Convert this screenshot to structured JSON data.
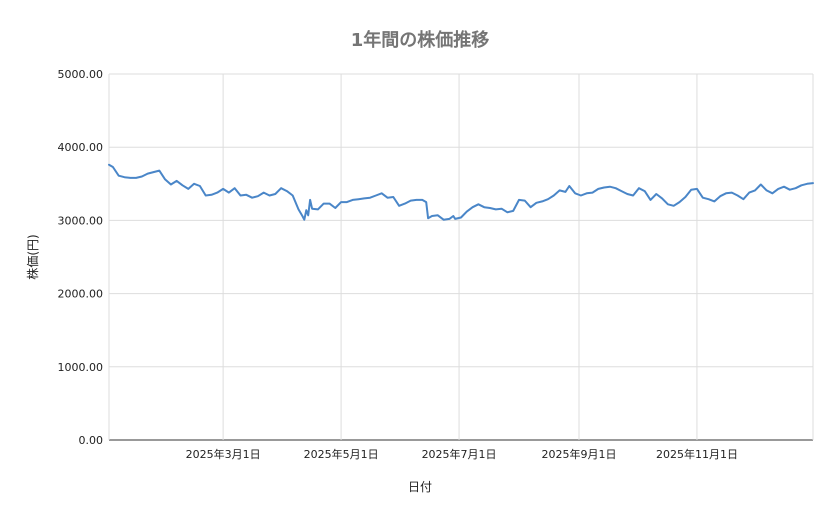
{
  "chart_data": {
    "type": "line",
    "title": "1年間の株価推移",
    "xlabel": "日付",
    "ylabel": "株価(円)",
    "ylim": [
      0,
      5000
    ],
    "y_ticks": [
      "0.00",
      "1000.00",
      "2000.00",
      "3000.00",
      "4000.00",
      "5000.00"
    ],
    "x_range": [
      "2025-01-01",
      "2025-12-31"
    ],
    "x_ticks": [
      {
        "date": "2025-03-01",
        "label": "2025年3月1日"
      },
      {
        "date": "2025-05-01",
        "label": "2025年5月1日"
      },
      {
        "date": "2025-07-01",
        "label": "2025年7月1日"
      },
      {
        "date": "2025-09-01",
        "label": "2025年9月1日"
      },
      {
        "date": "2025-11-01",
        "label": "2025年11月1日"
      }
    ],
    "grid": true,
    "legend": "none",
    "series": [
      {
        "color": "#4a86c8",
        "points": [
          [
            "2025-01-01",
            3760
          ],
          [
            "2025-01-03",
            3730
          ],
          [
            "2025-01-06",
            3610
          ],
          [
            "2025-01-09",
            3590
          ],
          [
            "2025-01-12",
            3580
          ],
          [
            "2025-01-15",
            3580
          ],
          [
            "2025-01-18",
            3600
          ],
          [
            "2025-01-21",
            3640
          ],
          [
            "2025-01-24",
            3660
          ],
          [
            "2025-01-27",
            3680
          ],
          [
            "2025-01-30",
            3560
          ],
          [
            "2025-02-02",
            3490
          ],
          [
            "2025-02-05",
            3540
          ],
          [
            "2025-02-08",
            3480
          ],
          [
            "2025-02-11",
            3430
          ],
          [
            "2025-02-14",
            3500
          ],
          [
            "2025-02-17",
            3470
          ],
          [
            "2025-02-20",
            3340
          ],
          [
            "2025-02-23",
            3350
          ],
          [
            "2025-02-26",
            3380
          ],
          [
            "2025-03-01",
            3430
          ],
          [
            "2025-03-04",
            3380
          ],
          [
            "2025-03-07",
            3440
          ],
          [
            "2025-03-10",
            3340
          ],
          [
            "2025-03-13",
            3350
          ],
          [
            "2025-03-16",
            3310
          ],
          [
            "2025-03-19",
            3330
          ],
          [
            "2025-03-22",
            3380
          ],
          [
            "2025-03-25",
            3340
          ],
          [
            "2025-03-28",
            3360
          ],
          [
            "2025-03-31",
            3440
          ],
          [
            "2025-04-03",
            3400
          ],
          [
            "2025-04-06",
            3340
          ],
          [
            "2025-04-09",
            3150
          ],
          [
            "2025-04-11",
            3060
          ],
          [
            "2025-04-12",
            3010
          ],
          [
            "2025-04-13",
            3140
          ],
          [
            "2025-04-14",
            3070
          ],
          [
            "2025-04-15",
            3280
          ],
          [
            "2025-04-16",
            3160
          ],
          [
            "2025-04-19",
            3150
          ],
          [
            "2025-04-22",
            3230
          ],
          [
            "2025-04-25",
            3230
          ],
          [
            "2025-04-28",
            3170
          ],
          [
            "2025-05-01",
            3250
          ],
          [
            "2025-05-04",
            3250
          ],
          [
            "2025-05-07",
            3280
          ],
          [
            "2025-05-10",
            3290
          ],
          [
            "2025-05-13",
            3300
          ],
          [
            "2025-05-16",
            3310
          ],
          [
            "2025-05-19",
            3340
          ],
          [
            "2025-05-22",
            3370
          ],
          [
            "2025-05-25",
            3310
          ],
          [
            "2025-05-28",
            3320
          ],
          [
            "2025-05-31",
            3200
          ],
          [
            "2025-06-03",
            3230
          ],
          [
            "2025-06-06",
            3270
          ],
          [
            "2025-06-09",
            3280
          ],
          [
            "2025-06-12",
            3280
          ],
          [
            "2025-06-14",
            3250
          ],
          [
            "2025-06-15",
            3030
          ],
          [
            "2025-06-17",
            3060
          ],
          [
            "2025-06-20",
            3070
          ],
          [
            "2025-06-23",
            3010
          ],
          [
            "2025-06-26",
            3020
          ],
          [
            "2025-06-28",
            3060
          ],
          [
            "2025-06-29",
            3020
          ],
          [
            "2025-07-02",
            3040
          ],
          [
            "2025-07-05",
            3120
          ],
          [
            "2025-07-08",
            3180
          ],
          [
            "2025-07-11",
            3220
          ],
          [
            "2025-07-14",
            3180
          ],
          [
            "2025-07-17",
            3170
          ],
          [
            "2025-07-20",
            3150
          ],
          [
            "2025-07-23",
            3160
          ],
          [
            "2025-07-26",
            3110
          ],
          [
            "2025-07-29",
            3130
          ],
          [
            "2025-08-01",
            3280
          ],
          [
            "2025-08-04",
            3270
          ],
          [
            "2025-08-07",
            3180
          ],
          [
            "2025-08-10",
            3240
          ],
          [
            "2025-08-13",
            3260
          ],
          [
            "2025-08-16",
            3290
          ],
          [
            "2025-08-19",
            3340
          ],
          [
            "2025-08-22",
            3410
          ],
          [
            "2025-08-25",
            3390
          ],
          [
            "2025-08-27",
            3470
          ],
          [
            "2025-08-30",
            3370
          ],
          [
            "2025-09-02",
            3340
          ],
          [
            "2025-09-05",
            3370
          ],
          [
            "2025-09-08",
            3380
          ],
          [
            "2025-09-11",
            3430
          ],
          [
            "2025-09-14",
            3450
          ],
          [
            "2025-09-17",
            3460
          ],
          [
            "2025-09-20",
            3440
          ],
          [
            "2025-09-23",
            3400
          ],
          [
            "2025-09-26",
            3360
          ],
          [
            "2025-09-29",
            3340
          ],
          [
            "2025-10-02",
            3440
          ],
          [
            "2025-10-05",
            3400
          ],
          [
            "2025-10-08",
            3280
          ],
          [
            "2025-10-11",
            3360
          ],
          [
            "2025-10-14",
            3300
          ],
          [
            "2025-10-17",
            3220
          ],
          [
            "2025-10-20",
            3200
          ],
          [
            "2025-10-23",
            3250
          ],
          [
            "2025-10-26",
            3320
          ],
          [
            "2025-10-29",
            3420
          ],
          [
            "2025-11-01",
            3430
          ],
          [
            "2025-11-04",
            3310
          ],
          [
            "2025-11-07",
            3290
          ],
          [
            "2025-11-10",
            3260
          ],
          [
            "2025-11-13",
            3330
          ],
          [
            "2025-11-16",
            3370
          ],
          [
            "2025-11-19",
            3380
          ],
          [
            "2025-11-22",
            3340
          ],
          [
            "2025-11-25",
            3290
          ],
          [
            "2025-11-28",
            3380
          ],
          [
            "2025-12-01",
            3410
          ],
          [
            "2025-12-04",
            3490
          ],
          [
            "2025-12-07",
            3410
          ],
          [
            "2025-12-10",
            3370
          ],
          [
            "2025-12-13",
            3430
          ],
          [
            "2025-12-16",
            3460
          ],
          [
            "2025-12-19",
            3420
          ],
          [
            "2025-12-22",
            3440
          ],
          [
            "2025-12-25",
            3480
          ],
          [
            "2025-12-28",
            3500
          ],
          [
            "2025-12-31",
            3510
          ]
        ]
      }
    ]
  }
}
